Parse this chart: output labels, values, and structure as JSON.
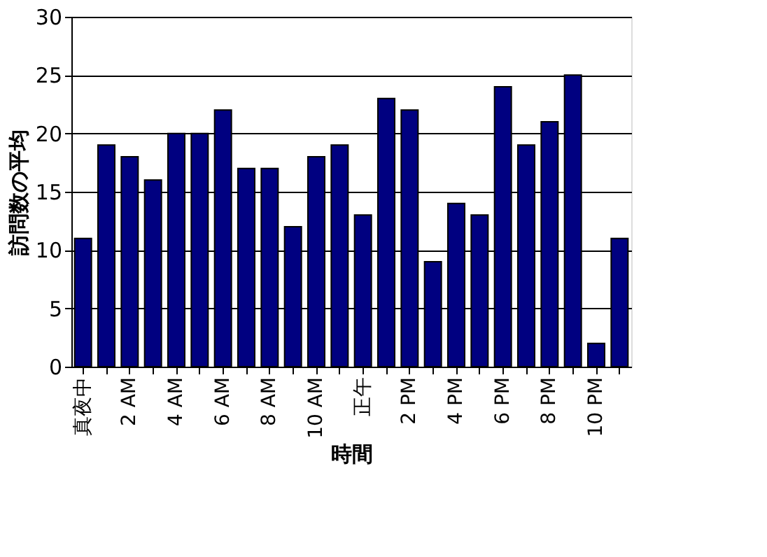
{
  "chart_data": {
    "type": "bar",
    "xlabel": "時間",
    "ylabel": "訪問数の平均",
    "categories": [
      "真夜中",
      null,
      "2 AM",
      null,
      "4 AM",
      null,
      "6 AM",
      null,
      "8 AM",
      null,
      "10 AM",
      null,
      "正午",
      null,
      "2 PM",
      null,
      "4 PM",
      null,
      "6 PM",
      null,
      "8 PM",
      null,
      "10 PM",
      null
    ],
    "values": [
      11,
      19,
      18,
      16,
      20,
      20,
      22,
      17,
      17,
      12,
      18,
      19,
      13,
      23,
      22,
      9,
      14,
      13,
      24,
      19,
      21,
      25,
      2,
      11
    ],
    "color": "#000080",
    "ylim": [
      0,
      30
    ],
    "yticks": [
      0,
      5,
      10,
      15,
      20,
      25,
      30
    ],
    "grid": "y"
  }
}
